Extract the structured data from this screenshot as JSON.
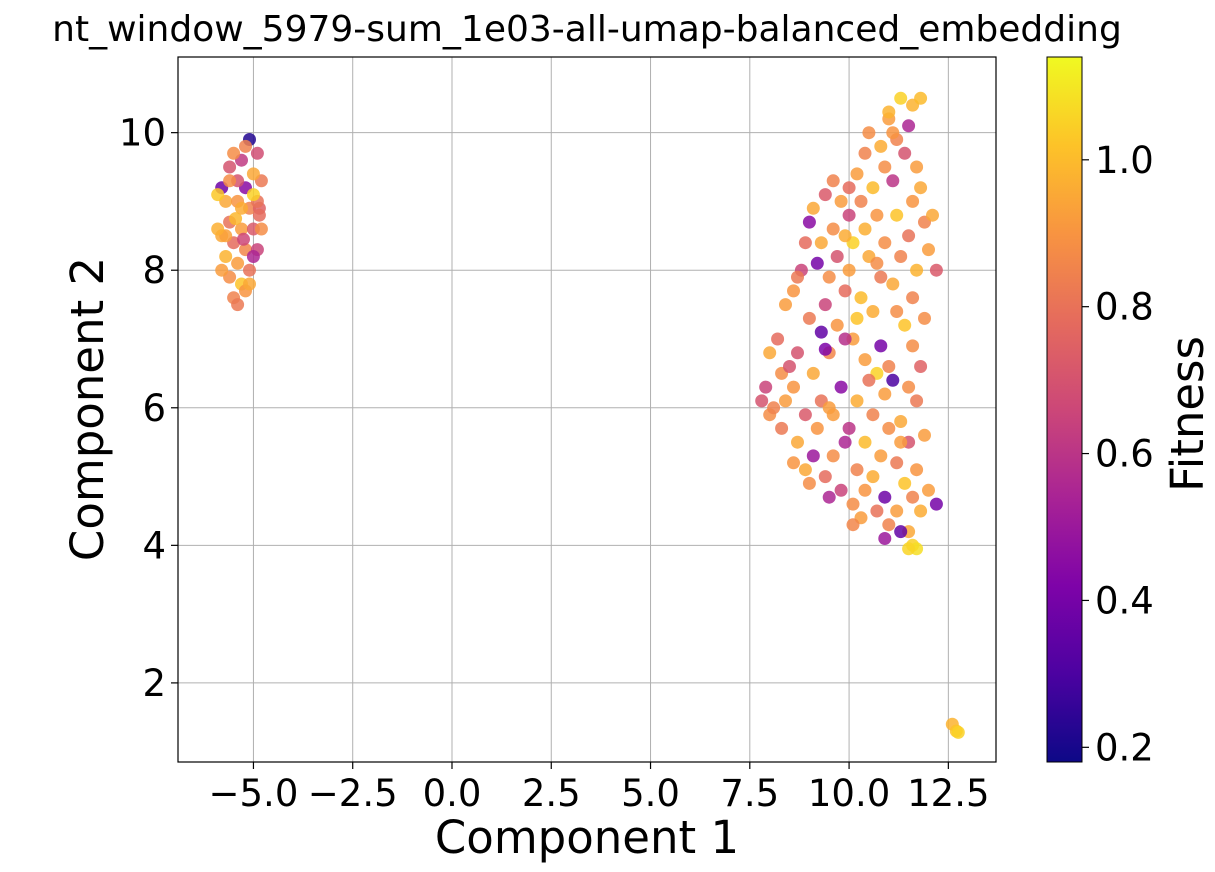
{
  "chart_data": {
    "type": "scatter",
    "title": "nt_window_5979-sum_1e03-all-umap-balanced_embedding",
    "xlabel": "Component 1",
    "ylabel": "Component 2",
    "xlim": [
      -6.9,
      13.7
    ],
    "ylim": [
      0.85,
      11.1
    ],
    "xticks": [
      -5.0,
      -2.5,
      0.0,
      2.5,
      5.0,
      7.5,
      10.0,
      12.5
    ],
    "xtick_labels": [
      "−5.0",
      "−2.5",
      "0.0",
      "2.5",
      "5.0",
      "7.5",
      "10.0",
      "12.5"
    ],
    "yticks": [
      2,
      4,
      6,
      8,
      10
    ],
    "ytick_labels": [
      "2",
      "4",
      "6",
      "8",
      "10"
    ],
    "grid": true,
    "colorbar": {
      "label": "Fitness",
      "colormap": "plasma",
      "range": [
        0.18,
        1.14
      ],
      "ticks": [
        0.2,
        0.4,
        0.6,
        0.8,
        1.0
      ],
      "tick_labels": [
        "0.2",
        "0.4",
        "0.6",
        "0.8",
        "1.0"
      ]
    },
    "clusters": [
      {
        "name": "left",
        "points": [
          [
            -5.1,
            9.9,
            0.22
          ],
          [
            -5.2,
            9.2,
            0.45
          ],
          [
            -5.8,
            9.2,
            0.38
          ],
          [
            -5.6,
            9.5,
            0.7
          ],
          [
            -5.3,
            9.6,
            0.62
          ],
          [
            -4.9,
            9.7,
            0.68
          ],
          [
            -4.8,
            9.3,
            0.82
          ],
          [
            -5.0,
            9.4,
            0.95
          ],
          [
            -5.5,
            9.7,
            0.88
          ],
          [
            -5.7,
            9.0,
            0.95
          ],
          [
            -5.9,
            9.1,
            1.03
          ],
          [
            -5.4,
            9.0,
            0.9
          ],
          [
            -5.1,
            8.9,
            0.85
          ],
          [
            -4.85,
            8.9,
            0.75
          ],
          [
            -5.6,
            8.7,
            0.8
          ],
          [
            -5.3,
            8.6,
            0.92
          ],
          [
            -5.0,
            8.6,
            0.72
          ],
          [
            -4.8,
            8.6,
            0.88
          ],
          [
            -5.8,
            8.5,
            0.95
          ],
          [
            -5.5,
            8.4,
            0.78
          ],
          [
            -5.2,
            8.3,
            0.86
          ],
          [
            -4.9,
            8.3,
            0.65
          ],
          [
            -5.7,
            8.2,
            0.98
          ],
          [
            -5.4,
            8.1,
            0.92
          ],
          [
            -5.1,
            8.0,
            0.8
          ],
          [
            -5.6,
            7.9,
            0.88
          ],
          [
            -5.3,
            7.8,
            1.02
          ],
          [
            -5.5,
            7.6,
            0.85
          ],
          [
            -5.2,
            7.7,
            0.9
          ],
          [
            -5.0,
            8.2,
            0.55
          ],
          [
            -5.7,
            8.5,
            0.93
          ],
          [
            -4.9,
            9.0,
            0.8
          ],
          [
            -5.4,
            9.3,
            0.7
          ],
          [
            -5.2,
            9.8,
            0.85
          ],
          [
            -5.8,
            8.0,
            0.92
          ],
          [
            -5.3,
            8.9,
            0.96
          ],
          [
            -5.0,
            9.1,
            1.05
          ],
          [
            -5.6,
            9.3,
            0.88
          ],
          [
            -5.1,
            7.8,
            0.95
          ],
          [
            -5.4,
            7.5,
            0.82
          ],
          [
            -5.9,
            8.6,
            0.97
          ],
          [
            -4.85,
            8.8,
            0.78
          ],
          [
            -5.25,
            8.45,
            0.66
          ],
          [
            -5.45,
            8.75,
            0.99
          ]
        ]
      },
      {
        "name": "right",
        "points": [
          [
            11.3,
            10.5,
            1.05
          ],
          [
            11.6,
            10.4,
            0.98
          ],
          [
            11.0,
            10.2,
            0.92
          ],
          [
            11.5,
            10.1,
            0.55
          ],
          [
            11.2,
            9.9,
            0.85
          ],
          [
            10.8,
            9.8,
            0.96
          ],
          [
            11.4,
            9.7,
            0.7
          ],
          [
            11.7,
            9.5,
            0.92
          ],
          [
            10.9,
            9.5,
            0.88
          ],
          [
            11.1,
            9.3,
            0.6
          ],
          [
            10.6,
            9.2,
            1.0
          ],
          [
            11.8,
            9.2,
            0.95
          ],
          [
            9.4,
            9.1,
            0.72
          ],
          [
            9.8,
            9.0,
            0.92
          ],
          [
            10.3,
            9.0,
            0.85
          ],
          [
            9.1,
            8.9,
            0.95
          ],
          [
            10.0,
            8.8,
            0.65
          ],
          [
            10.7,
            8.8,
            0.9
          ],
          [
            11.2,
            8.8,
            1.02
          ],
          [
            11.9,
            8.7,
            0.85
          ],
          [
            9.0,
            8.7,
            0.45
          ],
          [
            9.6,
            8.6,
            0.88
          ],
          [
            10.4,
            8.6,
            0.97
          ],
          [
            11.5,
            8.5,
            0.8
          ],
          [
            8.9,
            8.4,
            0.78
          ],
          [
            9.3,
            8.4,
            0.95
          ],
          [
            10.1,
            8.4,
            1.05
          ],
          [
            10.9,
            8.4,
            0.88
          ],
          [
            12.0,
            8.3,
            0.92
          ],
          [
            9.7,
            8.2,
            0.7
          ],
          [
            10.5,
            8.2,
            0.95
          ],
          [
            11.3,
            8.2,
            0.85
          ],
          [
            9.2,
            8.1,
            0.4
          ],
          [
            8.8,
            8.0,
            0.65
          ],
          [
            10.0,
            8.0,
            0.92
          ],
          [
            11.7,
            8.0,
            0.98
          ],
          [
            12.2,
            8.0,
            0.72
          ],
          [
            9.5,
            7.9,
            0.88
          ],
          [
            10.8,
            7.9,
            0.82
          ],
          [
            11.1,
            7.8,
            0.95
          ],
          [
            8.6,
            7.7,
            0.9
          ],
          [
            9.9,
            7.7,
            0.78
          ],
          [
            10.3,
            7.6,
            1.0
          ],
          [
            11.6,
            7.6,
            0.85
          ],
          [
            8.4,
            7.5,
            0.92
          ],
          [
            9.4,
            7.5,
            0.65
          ],
          [
            10.6,
            7.4,
            0.96
          ],
          [
            11.2,
            7.4,
            0.88
          ],
          [
            9.0,
            7.3,
            0.82
          ],
          [
            9.7,
            7.2,
            0.9
          ],
          [
            11.4,
            7.2,
            1.02
          ],
          [
            9.3,
            7.1,
            0.35
          ],
          [
            8.2,
            7.0,
            0.78
          ],
          [
            10.1,
            7.0,
            0.92
          ],
          [
            10.8,
            6.9,
            0.4
          ],
          [
            11.6,
            6.9,
            0.88
          ],
          [
            8.0,
            6.8,
            0.95
          ],
          [
            8.7,
            6.8,
            0.7
          ],
          [
            9.5,
            6.8,
            0.86
          ],
          [
            9.4,
            6.85,
            0.42
          ],
          [
            10.4,
            6.7,
            0.92
          ],
          [
            11.0,
            6.6,
            0.85
          ],
          [
            11.8,
            6.6,
            0.75
          ],
          [
            8.3,
            6.5,
            0.88
          ],
          [
            9.1,
            6.5,
            0.95
          ],
          [
            10.7,
            6.5,
            1.05
          ],
          [
            11.1,
            6.4,
            0.3
          ],
          [
            7.9,
            6.3,
            0.65
          ],
          [
            8.6,
            6.3,
            0.9
          ],
          [
            9.8,
            6.3,
            0.45
          ],
          [
            11.5,
            6.3,
            0.88
          ],
          [
            7.8,
            6.1,
            0.7
          ],
          [
            8.4,
            6.1,
            0.92
          ],
          [
            9.3,
            6.1,
            0.8
          ],
          [
            10.2,
            6.1,
            0.96
          ],
          [
            11.7,
            6.1,
            0.82
          ],
          [
            8.0,
            5.9,
            0.88
          ],
          [
            8.9,
            5.9,
            0.72
          ],
          [
            9.6,
            5.9,
            0.92
          ],
          [
            10.6,
            5.9,
            0.85
          ],
          [
            11.3,
            5.8,
            0.95
          ],
          [
            8.3,
            5.7,
            0.82
          ],
          [
            9.2,
            5.7,
            0.9
          ],
          [
            10.0,
            5.7,
            0.6
          ],
          [
            11.0,
            5.7,
            0.88
          ],
          [
            11.9,
            5.6,
            0.92
          ],
          [
            8.7,
            5.5,
            0.95
          ],
          [
            9.9,
            5.5,
            0.55
          ],
          [
            10.4,
            5.5,
            1.0
          ],
          [
            11.5,
            5.5,
            0.7
          ],
          [
            9.1,
            5.3,
            0.5
          ],
          [
            9.6,
            5.3,
            0.88
          ],
          [
            10.8,
            5.3,
            0.92
          ],
          [
            11.2,
            5.2,
            0.82
          ],
          [
            8.9,
            5.1,
            0.95
          ],
          [
            10.2,
            5.1,
            0.85
          ],
          [
            11.7,
            5.1,
            0.9
          ],
          [
            9.4,
            5.0,
            0.78
          ],
          [
            10.6,
            5.0,
            0.96
          ],
          [
            9.0,
            4.9,
            0.88
          ],
          [
            11.4,
            4.9,
            1.02
          ],
          [
            12.0,
            4.8,
            0.92
          ],
          [
            9.8,
            4.8,
            0.65
          ],
          [
            10.4,
            4.8,
            0.9
          ],
          [
            10.9,
            4.7,
            0.38
          ],
          [
            11.6,
            4.7,
            0.85
          ],
          [
            9.5,
            4.7,
            0.55
          ],
          [
            10.1,
            4.6,
            0.88
          ],
          [
            12.2,
            4.6,
            0.4
          ],
          [
            11.2,
            4.5,
            0.92
          ],
          [
            10.7,
            4.5,
            0.8
          ],
          [
            11.8,
            4.5,
            0.96
          ],
          [
            10.3,
            4.4,
            0.92
          ],
          [
            11.0,
            4.3,
            0.85
          ],
          [
            11.5,
            4.2,
            0.95
          ],
          [
            11.3,
            4.2,
            0.35
          ],
          [
            10.9,
            4.1,
            0.5
          ],
          [
            11.6,
            4.0,
            1.05
          ],
          [
            11.7,
            3.95,
            1.08
          ],
          [
            11.5,
            3.95,
            1.06
          ],
          [
            10.5,
            10.0,
            0.88
          ],
          [
            10.2,
            9.4,
            0.92
          ],
          [
            9.6,
            9.3,
            0.85
          ],
          [
            12.1,
            8.8,
            0.95
          ],
          [
            10.0,
            9.2,
            0.78
          ],
          [
            11.6,
            9.0,
            0.9
          ],
          [
            9.9,
            8.5,
            0.96
          ],
          [
            10.7,
            8.1,
            0.88
          ],
          [
            8.7,
            7.9,
            0.82
          ],
          [
            10.2,
            7.3,
            1.02
          ],
          [
            11.9,
            7.3,
            0.88
          ],
          [
            8.5,
            6.6,
            0.7
          ],
          [
            10.9,
            6.2,
            0.92
          ],
          [
            9.5,
            6.0,
            0.92
          ],
          [
            8.6,
            5.2,
            0.9
          ],
          [
            10.1,
            4.3,
            0.86
          ],
          [
            11.0,
            10.3,
            0.98
          ],
          [
            11.8,
            10.5,
            1.0
          ],
          [
            11.1,
            10.0,
            0.9
          ],
          [
            10.4,
            9.7,
            0.85
          ],
          [
            9.9,
            7.0,
            0.58
          ],
          [
            10.5,
            6.4,
            0.8
          ],
          [
            8.1,
            6.0,
            0.85
          ],
          [
            11.3,
            5.5,
            0.92
          ]
        ]
      },
      {
        "name": "outlier",
        "points": [
          [
            12.6,
            1.4,
            0.98
          ],
          [
            12.7,
            1.3,
            1.02
          ],
          [
            12.75,
            1.28,
            1.05
          ]
        ]
      }
    ]
  }
}
